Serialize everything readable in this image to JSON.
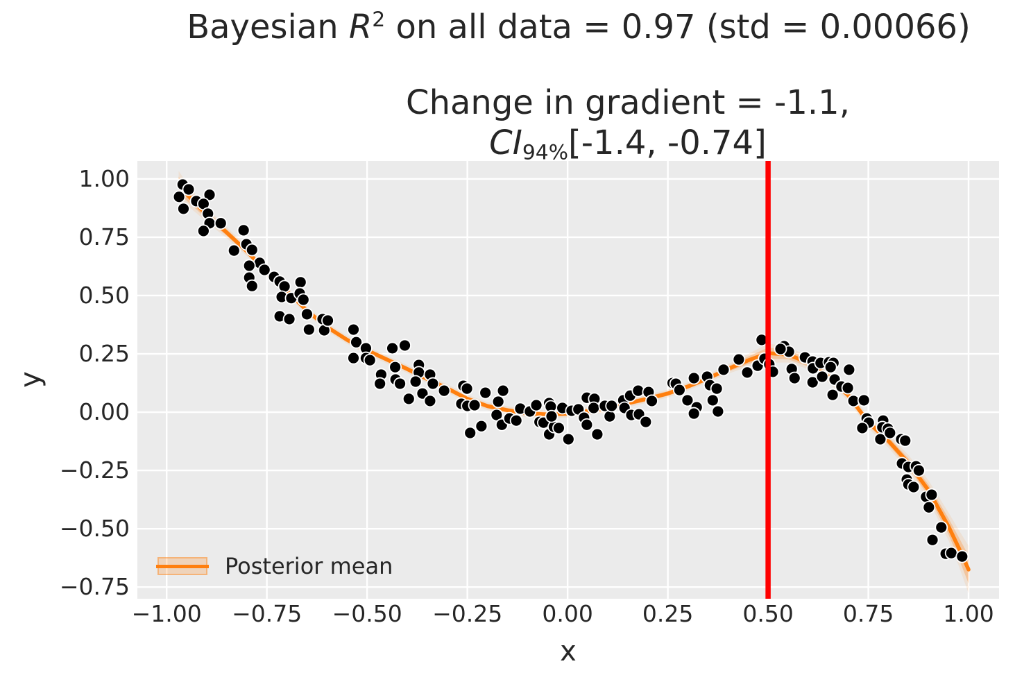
{
  "figure_title": {
    "pre": "Bayesian ",
    "var": "R",
    "sup": "2",
    "post": " on all data = 0.97 (std = 0.00066)"
  },
  "axes_title": {
    "line1": "Change in gradient = -1.1,",
    "ci": "CI",
    "ci_sub": "94%",
    "ci_rest": "[-1.4, -0.74]"
  },
  "legend": {
    "label": "Posterior mean"
  },
  "axes": {
    "xlabel": "x",
    "ylabel": "y",
    "background": "#ebebeb",
    "grid_color": "#ffffff",
    "tick_color": "#262626",
    "x_ticks": [
      {
        "v": -1.0,
        "label": "−1.00"
      },
      {
        "v": -0.75,
        "label": "−0.75"
      },
      {
        "v": -0.5,
        "label": "−0.50"
      },
      {
        "v": -0.25,
        "label": "−0.25"
      },
      {
        "v": 0.0,
        "label": "0.00"
      },
      {
        "v": 0.25,
        "label": "0.25"
      },
      {
        "v": 0.5,
        "label": "0.50"
      },
      {
        "v": 0.75,
        "label": "0.75"
      },
      {
        "v": 1.0,
        "label": "1.00"
      }
    ],
    "y_ticks": [
      {
        "v": 1.0,
        "label": "1.00"
      },
      {
        "v": 0.75,
        "label": "0.75"
      },
      {
        "v": 0.5,
        "label": "0.50"
      },
      {
        "v": 0.25,
        "label": "0.25"
      },
      {
        "v": 0.0,
        "label": "0.00"
      },
      {
        "v": -0.25,
        "label": "−0.25"
      },
      {
        "v": -0.5,
        "label": "−0.50"
      },
      {
        "v": -0.75,
        "label": "−0.75"
      }
    ]
  },
  "chart_data": {
    "type": "scatter",
    "title": "Bayesian R² on all data = 0.97 (std = 0.00066)",
    "subtitle": "Change in gradient = -1.1, CI94%[-1.4, -0.74]",
    "xlabel": "x",
    "ylabel": "y",
    "xlim": [
      -1.073,
      1.076
    ],
    "ylim": [
      -0.8,
      1.077
    ],
    "grid": true,
    "legend_position": "lower left",
    "vline": {
      "x": 0.5,
      "color": "#ff0000"
    },
    "scatter": {
      "color": "#000000",
      "edge_color": "#ffffff",
      "points": [
        [
          -0.96,
          0.976
        ],
        [
          -0.945,
          0.955
        ],
        [
          -0.969,
          0.923
        ],
        [
          -0.893,
          0.932
        ],
        [
          -0.958,
          0.872
        ],
        [
          -0.926,
          0.905
        ],
        [
          -0.908,
          0.893
        ],
        [
          -0.897,
          0.851
        ],
        [
          -0.893,
          0.81
        ],
        [
          -0.865,
          0.81
        ],
        [
          -0.908,
          0.777
        ],
        [
          -0.808,
          0.78
        ],
        [
          -0.801,
          0.72
        ],
        [
          -0.787,
          0.696
        ],
        [
          -0.832,
          0.693
        ],
        [
          -0.768,
          0.64
        ],
        [
          -0.794,
          0.628
        ],
        [
          -0.756,
          0.61
        ],
        [
          -0.794,
          0.577
        ],
        [
          -0.787,
          0.541
        ],
        [
          -0.732,
          0.58
        ],
        [
          -0.718,
          0.56
        ],
        [
          -0.706,
          0.539
        ],
        [
          -0.713,
          0.494
        ],
        [
          -0.689,
          0.489
        ],
        [
          -0.666,
          0.557
        ],
        [
          -0.668,
          0.509
        ],
        [
          -0.659,
          0.482
        ],
        [
          -0.718,
          0.411
        ],
        [
          -0.694,
          0.399
        ],
        [
          -0.65,
          0.42
        ],
        [
          -0.611,
          0.399
        ],
        [
          -0.645,
          0.354
        ],
        [
          -0.607,
          0.351
        ],
        [
          -0.598,
          0.393
        ],
        [
          -0.534,
          0.354
        ],
        [
          -0.527,
          0.3
        ],
        [
          -0.503,
          0.274
        ],
        [
          -0.534,
          0.232
        ],
        [
          -0.503,
          0.232
        ],
        [
          -0.493,
          0.223
        ],
        [
          -0.437,
          0.274
        ],
        [
          -0.406,
          0.286
        ],
        [
          -0.465,
          0.161
        ],
        [
          -0.468,
          0.122
        ],
        [
          -0.43,
          0.193
        ],
        [
          -0.429,
          0.14
        ],
        [
          -0.418,
          0.122
        ],
        [
          -0.371,
          0.202
        ],
        [
          -0.371,
          0.17
        ],
        [
          -0.379,
          0.131
        ],
        [
          -0.362,
          0.08
        ],
        [
          -0.396,
          0.057
        ],
        [
          -0.343,
          0.161
        ],
        [
          -0.336,
          0.122
        ],
        [
          -0.343,
          0.048
        ],
        [
          -0.308,
          0.092
        ],
        [
          -0.26,
          0.113
        ],
        [
          -0.251,
          0.101
        ],
        [
          -0.265,
          0.036
        ],
        [
          -0.25,
          0.027
        ],
        [
          -0.232,
          0.03
        ],
        [
          -0.205,
          0.083
        ],
        [
          -0.243,
          -0.089
        ],
        [
          -0.215,
          -0.06
        ],
        [
          -0.177,
          -0.012
        ],
        [
          -0.173,
          0.045
        ],
        [
          -0.161,
          0.092
        ],
        [
          -0.164,
          -0.054
        ],
        [
          -0.145,
          -0.027
        ],
        [
          -0.128,
          -0.036
        ],
        [
          -0.118,
          0.015
        ],
        [
          -0.094,
          0.003
        ],
        [
          -0.078,
          0.03
        ],
        [
          -0.07,
          -0.042
        ],
        [
          -0.06,
          -0.045
        ],
        [
          -0.046,
          0.039
        ],
        [
          -0.042,
          0.024
        ],
        [
          -0.046,
          -0.095
        ],
        [
          -0.034,
          -0.063
        ],
        [
          -0.04,
          -0.018
        ],
        [
          -0.022,
          -0.068
        ],
        [
          -0.013,
          0.018
        ],
        [
          0.002,
          -0.116
        ],
        [
          0.01,
          0.006
        ],
        [
          0.027,
          0.012
        ],
        [
          0.041,
          -0.024
        ],
        [
          0.048,
          -0.054
        ],
        [
          0.048,
          0.062
        ],
        [
          0.067,
          0.057
        ],
        [
          0.065,
          0.018
        ],
        [
          0.074,
          -0.095
        ],
        [
          0.093,
          0.027
        ],
        [
          0.105,
          -0.018
        ],
        [
          0.11,
          0.027
        ],
        [
          0.139,
          0.051
        ],
        [
          0.142,
          0.018
        ],
        [
          0.156,
          0.071
        ],
        [
          0.159,
          -0.012
        ],
        [
          0.176,
          0.092
        ],
        [
          0.178,
          -0.009
        ],
        [
          0.195,
          -0.042
        ],
        [
          0.202,
          0.086
        ],
        [
          0.21,
          0.048
        ],
        [
          0.262,
          0.125
        ],
        [
          0.27,
          0.122
        ],
        [
          0.279,
          0.095
        ],
        [
          0.299,
          0.051
        ],
        [
          0.315,
          0.146
        ],
        [
          0.322,
          0.021
        ],
        [
          0.315,
          -0.006
        ],
        [
          0.348,
          0.152
        ],
        [
          0.355,
          0.116
        ],
        [
          0.372,
          0.101
        ],
        [
          0.362,
          0.051
        ],
        [
          0.375,
          0.003
        ],
        [
          0.389,
          0.182
        ],
        [
          0.427,
          0.226
        ],
        [
          0.448,
          0.17
        ],
        [
          0.474,
          0.199
        ],
        [
          0.484,
          0.31
        ],
        [
          0.491,
          0.229
        ],
        [
          0.503,
          0.205
        ],
        [
          0.512,
          0.173
        ],
        [
          0.54,
          0.283
        ],
        [
          0.552,
          0.259
        ],
        [
          0.531,
          0.271
        ],
        [
          0.559,
          0.185
        ],
        [
          0.566,
          0.146
        ],
        [
          0.592,
          0.235
        ],
        [
          0.611,
          0.217
        ],
        [
          0.612,
          0.188
        ],
        [
          0.631,
          0.211
        ],
        [
          0.611,
          0.128
        ],
        [
          0.635,
          0.152
        ],
        [
          0.652,
          0.214
        ],
        [
          0.663,
          0.211
        ],
        [
          0.656,
          0.193
        ],
        [
          0.666,
          0.14
        ],
        [
          0.683,
          0.11
        ],
        [
          0.699,
          0.104
        ],
        [
          0.661,
          0.074
        ],
        [
          0.702,
          0.182
        ],
        [
          0.713,
          0.048
        ],
        [
          0.739,
          0.051
        ],
        [
          0.746,
          -0.027
        ],
        [
          0.751,
          -0.045
        ],
        [
          0.735,
          -0.068
        ],
        [
          0.787,
          -0.036
        ],
        [
          0.785,
          -0.065
        ],
        [
          0.799,
          -0.071
        ],
        [
          0.78,
          -0.116
        ],
        [
          0.804,
          -0.089
        ],
        [
          0.832,
          -0.116
        ],
        [
          0.842,
          -0.122
        ],
        [
          0.834,
          -0.22
        ],
        [
          0.85,
          -0.235
        ],
        [
          0.869,
          -0.232
        ],
        [
          0.876,
          -0.25
        ],
        [
          0.846,
          -0.289
        ],
        [
          0.85,
          -0.31
        ],
        [
          0.863,
          -0.321
        ],
        [
          0.894,
          -0.363
        ],
        [
          0.908,
          -0.354
        ],
        [
          0.901,
          -0.408
        ],
        [
          0.932,
          -0.494
        ],
        [
          0.91,
          -0.548
        ],
        [
          0.943,
          -0.607
        ],
        [
          0.957,
          -0.604
        ],
        [
          0.984,
          -0.619
        ]
      ]
    },
    "posterior_mean": {
      "name": "Posterior mean",
      "color": "#ff7f0e",
      "x": [
        -0.97,
        -0.95,
        -0.925,
        -0.9,
        -0.85,
        -0.8,
        -0.75,
        -0.7,
        -0.65,
        -0.6,
        -0.55,
        -0.5,
        -0.45,
        -0.4,
        -0.35,
        -0.3,
        -0.25,
        -0.2,
        -0.15,
        -0.1,
        -0.05,
        0.0,
        0.05,
        0.1,
        0.15,
        0.2,
        0.25,
        0.3,
        0.35,
        0.4,
        0.45,
        0.5,
        0.55,
        0.6,
        0.65,
        0.7,
        0.75,
        0.8,
        0.85,
        0.9,
        0.95,
        0.975,
        1.0
      ],
      "y": [
        0.975,
        0.935,
        0.89,
        0.845,
        0.77,
        0.69,
        0.6,
        0.52,
        0.435,
        0.365,
        0.31,
        0.265,
        0.225,
        0.185,
        0.142,
        0.102,
        0.057,
        0.026,
        0.008,
        -0.005,
        -0.01,
        -0.006,
        0.004,
        0.018,
        0.038,
        0.058,
        0.08,
        0.11,
        0.145,
        0.185,
        0.222,
        0.253,
        0.247,
        0.212,
        0.152,
        0.072,
        -0.043,
        -0.123,
        -0.218,
        -0.335,
        -0.49,
        -0.58,
        -0.675
      ],
      "band_halfwidth": [
        0.035,
        0.028,
        0.022,
        0.018,
        0.014,
        0.012,
        0.011,
        0.01,
        0.01,
        0.01,
        0.01,
        0.01,
        0.01,
        0.01,
        0.01,
        0.01,
        0.01,
        0.01,
        0.01,
        0.01,
        0.01,
        0.01,
        0.01,
        0.01,
        0.01,
        0.01,
        0.01,
        0.01,
        0.01,
        0.012,
        0.016,
        0.024,
        0.02,
        0.016,
        0.014,
        0.014,
        0.015,
        0.017,
        0.02,
        0.025,
        0.035,
        0.045,
        0.06
      ]
    }
  }
}
